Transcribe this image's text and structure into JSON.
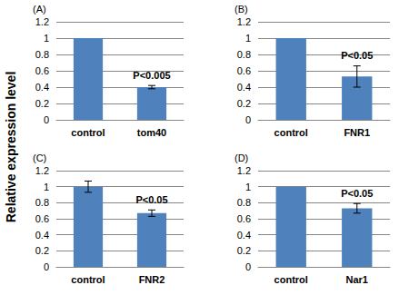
{
  "ylabel": "Relative expression level",
  "chart_data": [
    {
      "type": "bar",
      "label": "(A)",
      "categories": [
        "control",
        "tom40"
      ],
      "values": [
        1.0,
        0.4
      ],
      "errors": [
        0,
        0.02
      ],
      "annotation": {
        "category": "tom40",
        "text": "P<0.005"
      },
      "color": "#4f81bd",
      "ylim": [
        0,
        1.2
      ],
      "yticks": [
        0,
        0.2,
        0.4,
        0.6,
        0.8,
        1,
        1.2
      ],
      "grid": true
    },
    {
      "type": "bar",
      "label": "(B)",
      "categories": [
        "control",
        "FNR1"
      ],
      "values": [
        1.0,
        0.53
      ],
      "errors": [
        0,
        0.13
      ],
      "annotation": {
        "category": "FNR1",
        "text": "P<0.05"
      },
      "color": "#4f81bd",
      "ylim": [
        0,
        1.2
      ],
      "yticks": [
        0,
        0.2,
        0.4,
        0.6,
        0.8,
        1,
        1.2
      ],
      "grid": true
    },
    {
      "type": "bar",
      "label": "(C)",
      "categories": [
        "control",
        "FNR2"
      ],
      "values": [
        1.0,
        0.67
      ],
      "errors": [
        0.07,
        0.04
      ],
      "annotation": {
        "category": "FNR2",
        "text": "P<0.05"
      },
      "color": "#4f81bd",
      "ylim": [
        0,
        1.2
      ],
      "yticks": [
        0,
        0.2,
        0.4,
        0.6,
        0.8,
        1,
        1.2
      ],
      "grid": true
    },
    {
      "type": "bar",
      "label": "(D)",
      "categories": [
        "control",
        "Nar1"
      ],
      "values": [
        1.0,
        0.73
      ],
      "errors": [
        0,
        0.06
      ],
      "annotation": {
        "category": "Nar1",
        "text": "P<0.05"
      },
      "color": "#4f81bd",
      "ylim": [
        0,
        1.2
      ],
      "yticks": [
        0,
        0.2,
        0.4,
        0.6,
        0.8,
        1,
        1.2
      ],
      "grid": true
    }
  ]
}
